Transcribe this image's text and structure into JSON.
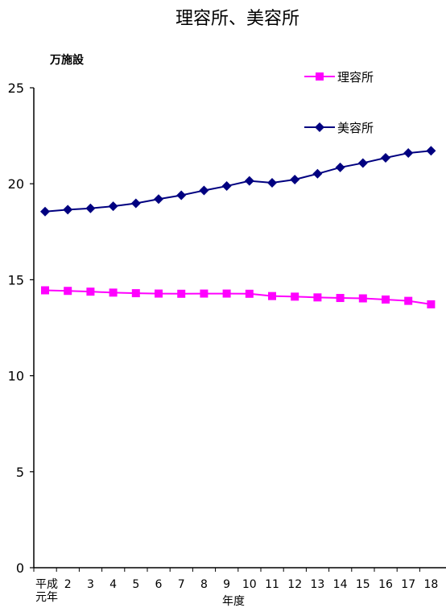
{
  "chart_data": {
    "type": "line",
    "title": "理容所、美容所",
    "unit_label": "万施設",
    "xlabel": "年度",
    "categories": [
      "平成\n元年",
      "2",
      "3",
      "4",
      "5",
      "6",
      "7",
      "8",
      "9",
      "10",
      "11",
      "12",
      "13",
      "14",
      "15",
      "16",
      "17",
      "18"
    ],
    "ylim": [
      0,
      25
    ],
    "yticks": [
      0,
      5,
      10,
      15,
      20,
      25
    ],
    "grid": false,
    "legend_position": "top-right",
    "series": [
      {
        "name": "理容所",
        "color": "#ff00ff",
        "marker": "square",
        "values": [
          14.45,
          14.42,
          14.38,
          14.33,
          14.3,
          14.28,
          14.27,
          14.28,
          14.28,
          14.27,
          14.15,
          14.12,
          14.08,
          14.05,
          14.03,
          13.97,
          13.9,
          13.72
        ]
      },
      {
        "name": "美容所",
        "color": "#000080",
        "marker": "diamond",
        "values": [
          18.55,
          18.65,
          18.72,
          18.83,
          18.98,
          19.2,
          19.4,
          19.65,
          19.88,
          20.15,
          20.05,
          20.22,
          20.52,
          20.85,
          21.08,
          21.35,
          21.6,
          21.72
        ]
      }
    ]
  }
}
